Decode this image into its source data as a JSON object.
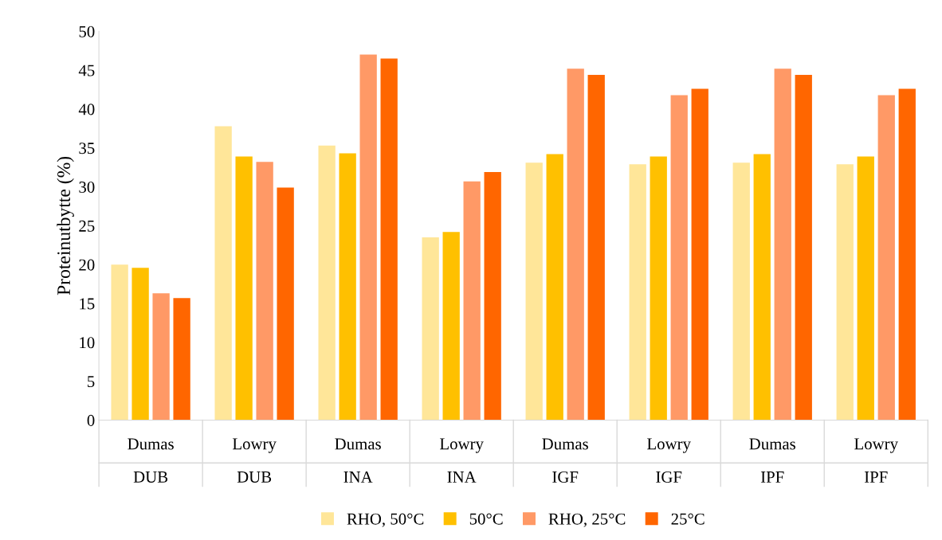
{
  "chart_data": {
    "type": "bar",
    "ylabel": "Proteinutbytte (%)",
    "categories": [
      "Dumas\nDUB",
      "Lowry\nDUB",
      "Dumas\nINA",
      "Lowry\nINA",
      "Dumas\nIGF",
      "Lowry\nIGF",
      "Dumas\nIPF",
      "Lowry\nIPF"
    ],
    "series": [
      {
        "name": "RHO, 50°C",
        "color": "#ffe699",
        "values": [
          20.0,
          37.8,
          35.3,
          23.5,
          33.1,
          32.9,
          33.1,
          32.9
        ]
      },
      {
        "name": "50°C",
        "color": "#ffc000",
        "values": [
          19.6,
          33.9,
          34.3,
          24.2,
          34.2,
          33.9,
          34.2,
          33.9
        ]
      },
      {
        "name": "RHO, 25°C",
        "color": "#ff9966",
        "values": [
          16.3,
          33.2,
          47.0,
          30.7,
          45.2,
          41.8,
          45.2,
          41.8
        ]
      },
      {
        "name": "25°C",
        "color": "#ff6600",
        "values": [
          15.7,
          29.9,
          46.5,
          31.9,
          44.4,
          42.6,
          44.4,
          42.6
        ]
      }
    ],
    "ylim": [
      0,
      50
    ],
    "yticks": [
      0,
      5,
      10,
      15,
      20,
      25,
      30,
      35,
      40,
      45,
      50
    ],
    "grid": false,
    "legend": "bottom"
  }
}
